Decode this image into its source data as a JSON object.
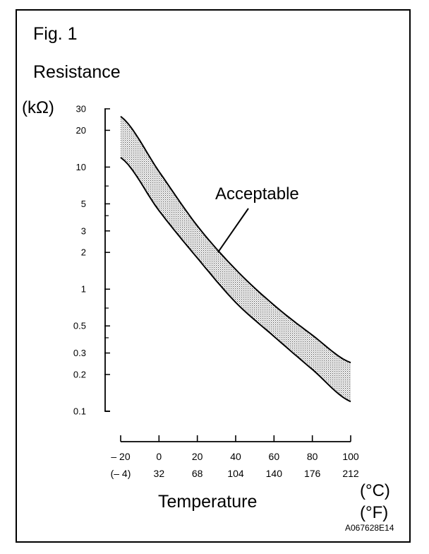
{
  "figure": {
    "label": "Fig. 1",
    "code": "A067628E14"
  },
  "chart_data": {
    "type": "area",
    "title": "",
    "ylabel": "Resistance",
    "ylabel_unit": "(kΩ)",
    "xlabel": "Temperature",
    "xlabel_units": [
      "(°C)",
      "(°F)"
    ],
    "y_scale": "log",
    "ylim": [
      0.1,
      30
    ],
    "xlim": [
      -20,
      100
    ],
    "y_ticks": [
      {
        "value": 30,
        "label": "30"
      },
      {
        "value": 20,
        "label": "20"
      },
      {
        "value": 10,
        "label": "10"
      },
      {
        "value": 5,
        "label": "5"
      },
      {
        "value": 3,
        "label": "3"
      },
      {
        "value": 2,
        "label": "2"
      },
      {
        "value": 1,
        "label": "1"
      },
      {
        "value": 0.5,
        "label": "0.5"
      },
      {
        "value": 0.3,
        "label": "0.3"
      },
      {
        "value": 0.2,
        "label": "0.2"
      },
      {
        "value": 0.1,
        "label": "0.1"
      }
    ],
    "y_minor_ticks": [
      0.7,
      0.4,
      7,
      4
    ],
    "x_ticks": [
      {
        "value": -20,
        "label_c": "– 20",
        "label_f": "(– 4)"
      },
      {
        "value": 0,
        "label_c": "0",
        "label_f": "32"
      },
      {
        "value": 20,
        "label_c": "20",
        "label_f": "68"
      },
      {
        "value": 40,
        "label_c": "40",
        "label_f": "104"
      },
      {
        "value": 60,
        "label_c": "60",
        "label_f": "140"
      },
      {
        "value": 80,
        "label_c": "80",
        "label_f": "176"
      },
      {
        "value": 100,
        "label_c": "100",
        "label_f": "212"
      }
    ],
    "band": {
      "x": [
        -20,
        0,
        20,
        40,
        60,
        80,
        100
      ],
      "upper": [
        26,
        9.2,
        3.3,
        1.45,
        0.74,
        0.42,
        0.25
      ],
      "lower": [
        12,
        4.4,
        1.8,
        0.78,
        0.41,
        0.22,
        0.12
      ]
    },
    "annotation": {
      "text": "Acceptable",
      "target_x": 30,
      "target_y": 2.0
    },
    "grid": false,
    "legend": "none"
  }
}
